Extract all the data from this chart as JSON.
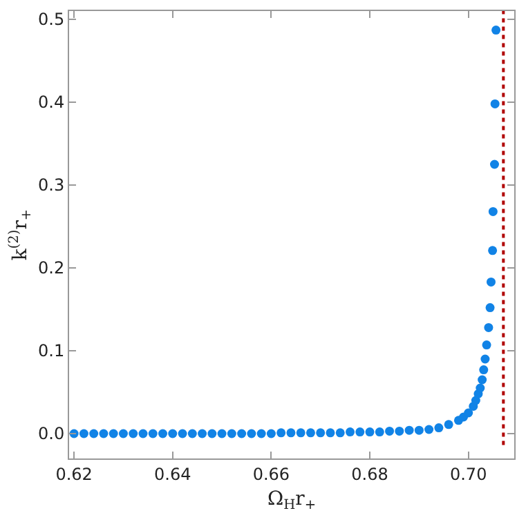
{
  "chart_data": {
    "type": "scatter",
    "xlabel": "Ω$_{H}$r$_{+}$",
    "ylabel": "k$^{(2)}$r$_{+}$",
    "x": [
      0.62,
      0.622,
      0.624,
      0.626,
      0.628,
      0.63,
      0.632,
      0.634,
      0.636,
      0.638,
      0.64,
      0.642,
      0.644,
      0.646,
      0.648,
      0.65,
      0.652,
      0.654,
      0.656,
      0.658,
      0.66,
      0.662,
      0.664,
      0.666,
      0.668,
      0.67,
      0.672,
      0.674,
      0.676,
      0.678,
      0.68,
      0.682,
      0.684,
      0.686,
      0.688,
      0.69,
      0.692,
      0.694,
      0.696,
      0.698,
      0.699,
      0.7,
      0.701,
      0.7015,
      0.702,
      0.7024,
      0.7028,
      0.7031,
      0.7034,
      0.7037,
      0.7041,
      0.7044,
      0.7046,
      0.7049,
      0.705,
      0.7053,
      0.7054,
      0.7056
    ],
    "series": [
      {
        "color": "#1183e6",
        "values": [
          0.0,
          0.0,
          0.0,
          0.0,
          0.0,
          0.0,
          0.0,
          0.0,
          0.0,
          0.0,
          0.0,
          0.0,
          0.0,
          0.0,
          0.0,
          0.0,
          0.0,
          0.0,
          0.0,
          0.0,
          0.0,
          0.001,
          0.001,
          0.001,
          0.001,
          0.001,
          0.001,
          0.001,
          0.002,
          0.002,
          0.002,
          0.002,
          0.003,
          0.003,
          0.004,
          0.004,
          0.005,
          0.007,
          0.011,
          0.016,
          0.02,
          0.025,
          0.033,
          0.04,
          0.048,
          0.055,
          0.065,
          0.077,
          0.09,
          0.107,
          0.128,
          0.152,
          0.183,
          0.221,
          0.268,
          0.325,
          0.398,
          0.487
        ]
      }
    ],
    "xlim": [
      0.619,
      0.7093
    ],
    "ylim": [
      -0.03,
      0.51
    ],
    "xticks": [
      0.62,
      0.64,
      0.66,
      0.68,
      {
        "value": 0.7,
        "label": "0.70"
      }
    ],
    "yticks": [
      {
        "value": 0,
        "label": "0.0"
      },
      {
        "value": 0.1,
        "label": "0.1"
      },
      {
        "value": 0.2,
        "label": "0.2"
      },
      {
        "value": 0.3,
        "label": "0.3"
      },
      {
        "value": 0.4,
        "label": "0.4"
      },
      {
        "value": 0.5,
        "label": "0.5"
      }
    ],
    "marker": "circle",
    "ref_lines": [
      {
        "axis": "x",
        "value": 0.7071,
        "color": "#b00000",
        "line_style": "dotted"
      }
    ]
  }
}
